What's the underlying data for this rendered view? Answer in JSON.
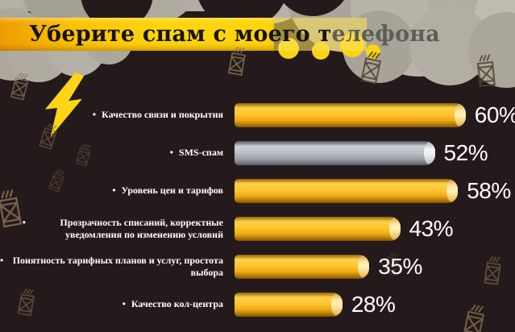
{
  "title": {
    "full": "Уберите спам с моего телефона",
    "black_part": "Уберите спам с моего т",
    "faded_part": "елефона"
  },
  "chart_data": {
    "type": "bar",
    "orientation": "horizontal",
    "title": "Уберите спам с моего телефона",
    "categories": [
      "Качество связи и покрытия",
      "SMS-спам",
      "Уровень цен и тарифов",
      "Прозрачность списаний, корректные уведомления по изменению условий",
      "Понятность тарифных планов и услуг, простота выбора",
      "Качество кол-центра"
    ],
    "values": [
      60,
      52,
      58,
      43,
      35,
      28
    ],
    "value_labels": [
      "60%",
      "52%",
      "58%",
      "43%",
      "35%",
      "28%"
    ],
    "unit": "%",
    "bar_colors": [
      "yellow",
      "gray",
      "yellow",
      "yellow",
      "yellow",
      "yellow"
    ],
    "xlim": [
      0,
      100
    ],
    "grid": false,
    "legend": "none"
  },
  "icons": {
    "bullet": "•",
    "lightning": "lightning-bolt",
    "envelope": "spam-envelope"
  },
  "colors": {
    "background": "#241a1c",
    "banner_yellow": "#ffd30a",
    "banner_orange": "#ee9e02",
    "bar_yellow": "#fdc52e",
    "bar_gray": "#bcc1c5",
    "cloud_gray": "#b2ada3",
    "lightning_yellow": "#ffd417",
    "text_white": "#ffffff",
    "title_text": "#171310"
  }
}
